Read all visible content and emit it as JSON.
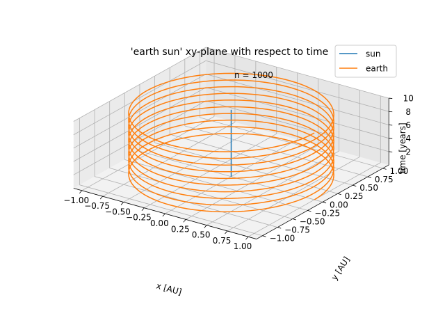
{
  "chart_data": {
    "type": "line",
    "title": "'earth sun' xy-plane with respect to time",
    "annotation": "n = 1000",
    "xlabel": "x [AU]",
    "ylabel": "y [AU]",
    "zlabel": "time [years]",
    "xlim": [
      -1.1,
      1.1
    ],
    "ylim": [
      -1.1,
      1.1
    ],
    "zlim": [
      0,
      10
    ],
    "x_ticks": [
      "−1.00",
      "−0.75",
      "−0.50",
      "−0.25",
      "0.00",
      "0.25",
      "0.50",
      "0.75",
      "1.00"
    ],
    "y_ticks": [
      "−1.00",
      "−0.75",
      "−0.50",
      "−0.25",
      "0.00",
      "0.25",
      "0.50",
      "0.75",
      "1.00"
    ],
    "z_ticks": [
      "2",
      "4",
      "6",
      "8",
      "10"
    ],
    "grid": true,
    "legend_position": "top-right",
    "n_points": 1000,
    "series": [
      {
        "name": "sun",
        "color": "#1f77b4",
        "x": [
          0,
          0
        ],
        "y": [
          0,
          0
        ],
        "t": [
          0,
          10
        ]
      },
      {
        "name": "earth",
        "color": "#ff7f0e",
        "orbit_radius": 1.0,
        "period": 1.0,
        "t_range": [
          0,
          10
        ],
        "x_start": 1.0,
        "y_start": 0.0
      }
    ]
  }
}
